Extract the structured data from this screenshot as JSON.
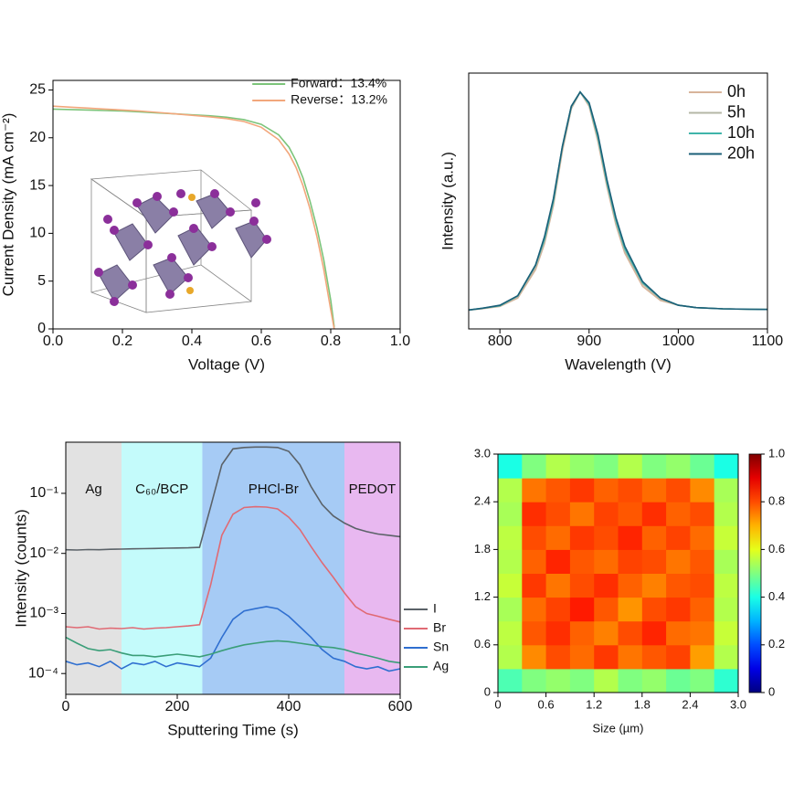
{
  "chart_data": [
    {
      "type": "line",
      "xlabel": "Voltage (V)",
      "ylabel": "Current Density (mA cm⁻²)",
      "xlim": [
        0,
        1
      ],
      "ylim": [
        0,
        26
      ],
      "xticks": [
        {
          "value": 0,
          "label": "0.0"
        },
        0.2,
        0.4,
        0.6,
        0.8,
        {
          "value": 1,
          "label": "1.0"
        }
      ],
      "yticks": [
        0,
        5,
        10,
        15,
        20,
        25
      ],
      "legend": "upper right",
      "x": [
        0,
        0.05,
        0.1,
        0.15,
        0.2,
        0.25,
        0.3,
        0.35,
        0.4,
        0.45,
        0.5,
        0.55,
        0.6,
        0.65,
        0.68,
        0.7,
        0.72,
        0.74,
        0.76,
        0.78,
        0.8,
        0.81
      ],
      "series": [
        {
          "name": "Forward：13.4%",
          "color": "#7cc47a",
          "values": [
            23.0,
            22.95,
            22.9,
            22.85,
            22.8,
            22.7,
            22.6,
            22.5,
            22.4,
            22.3,
            22.15,
            21.9,
            21.4,
            20.3,
            19.0,
            17.6,
            15.8,
            13.4,
            10.6,
            7.2,
            3.0,
            0.2
          ]
        },
        {
          "name": "Reverse：13.2%",
          "color": "#f2a77c",
          "values": [
            23.3,
            23.2,
            23.1,
            23.0,
            22.9,
            22.8,
            22.65,
            22.5,
            22.35,
            22.2,
            22.0,
            21.7,
            21.1,
            19.8,
            18.3,
            16.9,
            15.0,
            12.6,
            9.7,
            6.2,
            2.0,
            0
          ]
        }
      ]
    },
    {
      "type": "line",
      "xlabel": "Wavelength (V)",
      "ylabel": "Intensity (a.u.)",
      "xlim": [
        765,
        1100
      ],
      "ylim": [
        0,
        1.08
      ],
      "xticks": [
        800,
        900,
        1000,
        1100
      ],
      "legend": "upper right",
      "x": [
        765,
        780,
        800,
        820,
        840,
        850,
        860,
        870,
        880,
        890,
        900,
        910,
        920,
        930,
        940,
        960,
        980,
        1000,
        1020,
        1050,
        1080,
        1100
      ],
      "series": [
        {
          "name": "0h",
          "color": "#d8b49a",
          "values": [
            0.08,
            0.085,
            0.095,
            0.13,
            0.25,
            0.36,
            0.52,
            0.75,
            0.93,
            1.0,
            0.94,
            0.79,
            0.6,
            0.44,
            0.32,
            0.18,
            0.12,
            0.1,
            0.09,
            0.085,
            0.083,
            0.082
          ]
        },
        {
          "name": "5h",
          "color": "#b4b7a6",
          "values": [
            0.08,
            0.086,
            0.097,
            0.135,
            0.26,
            0.37,
            0.53,
            0.76,
            0.93,
            1.0,
            0.945,
            0.8,
            0.61,
            0.45,
            0.33,
            0.19,
            0.125,
            0.1,
            0.09,
            0.085,
            0.083,
            0.082
          ]
        },
        {
          "name": "10h",
          "color": "#3fb4aa",
          "values": [
            0.08,
            0.087,
            0.098,
            0.14,
            0.27,
            0.38,
            0.54,
            0.77,
            0.94,
            1.0,
            0.95,
            0.81,
            0.62,
            0.46,
            0.34,
            0.195,
            0.13,
            0.1,
            0.09,
            0.085,
            0.083,
            0.082
          ]
        },
        {
          "name": "20h",
          "color": "#1b5f78",
          "values": [
            0.08,
            0.087,
            0.1,
            0.14,
            0.27,
            0.39,
            0.55,
            0.77,
            0.94,
            1.0,
            0.955,
            0.82,
            0.63,
            0.47,
            0.35,
            0.2,
            0.13,
            0.1,
            0.09,
            0.085,
            0.083,
            0.082
          ]
        }
      ]
    },
    {
      "type": "line",
      "xlabel": "Sputtering Time (s)",
      "ylabel": "Intensity (counts)",
      "yscale": "log",
      "xlim": [
        0,
        600
      ],
      "ylim": [
        4.5e-05,
        0.71
      ],
      "xticks": [
        0,
        200,
        400,
        600
      ],
      "yticks": [
        {
          "value": 0.0001,
          "label": "10⁻⁴"
        },
        {
          "value": 0.001,
          "label": "10⁻³"
        },
        {
          "value": 0.01,
          "label": "10⁻²"
        },
        {
          "value": 0.1,
          "label": "10⁻¹"
        }
      ],
      "legend": "outside right",
      "regions": [
        {
          "label": "Ag",
          "start": 0,
          "end": 100,
          "color": "#e2e2e2"
        },
        {
          "label": "C₆₀/BCP",
          "start": 100,
          "end": 245,
          "color": "#c4fbfb"
        },
        {
          "label": "PHCl-Br",
          "start": 245,
          "end": 500,
          "color": "#a6cbf5"
        },
        {
          "label": "PEDOT",
          "start": 500,
          "end": 600,
          "color": "#e8b8f0"
        }
      ],
      "x": [
        0,
        20,
        40,
        60,
        80,
        100,
        120,
        140,
        160,
        180,
        200,
        220,
        240,
        260,
        280,
        300,
        320,
        340,
        360,
        380,
        400,
        420,
        440,
        460,
        480,
        500,
        520,
        540,
        560,
        580,
        600
      ],
      "series": [
        {
          "name": "I",
          "color": "#5b6268",
          "values": [
            0.0115,
            0.0114,
            0.0116,
            0.0115,
            0.0117,
            0.0118,
            0.0119,
            0.012,
            0.0121,
            0.0122,
            0.0123,
            0.0124,
            0.0126,
            0.06,
            0.3,
            0.55,
            0.58,
            0.59,
            0.59,
            0.58,
            0.5,
            0.3,
            0.13,
            0.065,
            0.042,
            0.032,
            0.026,
            0.023,
            0.021,
            0.02,
            0.019
          ]
        },
        {
          "name": "Br",
          "color": "#e06a74",
          "values": [
            0.0006,
            0.00058,
            0.0006,
            0.00055,
            0.00057,
            0.00056,
            0.00058,
            0.00055,
            0.00057,
            0.00058,
            0.0006,
            0.00062,
            0.00065,
            0.003,
            0.02,
            0.045,
            0.058,
            0.06,
            0.059,
            0.055,
            0.04,
            0.025,
            0.013,
            0.007,
            0.004,
            0.0022,
            0.0013,
            0.001,
            0.0009,
            0.0008,
            0.00072
          ]
        },
        {
          "name": "Sn",
          "color": "#2f6fd0",
          "values": [
            0.00016,
            0.00014,
            0.00015,
            0.00013,
            0.00016,
            0.00012,
            0.00015,
            0.00014,
            0.00016,
            0.00013,
            0.00015,
            0.00014,
            0.00013,
            0.00018,
            0.0004,
            0.0008,
            0.0011,
            0.0012,
            0.0013,
            0.0012,
            0.0009,
            0.0006,
            0.0004,
            0.00025,
            0.00018,
            0.00016,
            0.00013,
            0.00012,
            0.00013,
            0.00011,
            0.00012
          ]
        },
        {
          "name": "Ag",
          "color": "#3a9e78",
          "values": [
            0.0004,
            0.00032,
            0.00026,
            0.00024,
            0.00025,
            0.00022,
            0.0002,
            0.0002,
            0.00019,
            0.0002,
            0.00021,
            0.0002,
            0.00019,
            0.00021,
            0.00024,
            0.00027,
            0.0003,
            0.00032,
            0.00034,
            0.00035,
            0.00034,
            0.00032,
            0.0003,
            0.00028,
            0.00027,
            0.00025,
            0.00022,
            0.0002,
            0.00018,
            0.00016,
            0.00015
          ]
        }
      ]
    },
    {
      "type": "heatmap",
      "xlabel": "Size (µm)",
      "colorscale": "jet",
      "xlim": [
        0,
        3
      ],
      "ylim": [
        0,
        3
      ],
      "zlim": [
        0,
        1
      ],
      "xticks": [
        0,
        0.6,
        1.2,
        1.8,
        2.4,
        {
          "value": 3,
          "label": "3.0"
        }
      ],
      "yticks": [
        0,
        0.6,
        1.2,
        1.8,
        2.4,
        {
          "value": 3,
          "label": "3.0"
        }
      ],
      "cticks": [
        {
          "value": 0,
          "label": "0"
        },
        0.2,
        0.4,
        0.6,
        0.8,
        {
          "value": 1,
          "label": "1.0"
        }
      ],
      "z": [
        [
          0.45,
          0.5,
          0.52,
          0.5,
          0.55,
          0.5,
          0.52,
          0.48,
          0.5,
          0.42
        ],
        [
          0.55,
          0.74,
          0.8,
          0.77,
          0.82,
          0.76,
          0.79,
          0.81,
          0.72,
          0.55
        ],
        [
          0.56,
          0.79,
          0.83,
          0.78,
          0.75,
          0.8,
          0.84,
          0.77,
          0.76,
          0.57
        ],
        [
          0.54,
          0.77,
          0.81,
          0.85,
          0.79,
          0.73,
          0.8,
          0.82,
          0.78,
          0.55
        ],
        [
          0.57,
          0.82,
          0.76,
          0.8,
          0.83,
          0.78,
          0.75,
          0.79,
          0.8,
          0.56
        ],
        [
          0.55,
          0.78,
          0.84,
          0.79,
          0.77,
          0.81,
          0.8,
          0.76,
          0.79,
          0.54
        ],
        [
          0.56,
          0.8,
          0.77,
          0.82,
          0.8,
          0.84,
          0.78,
          0.81,
          0.77,
          0.57
        ],
        [
          0.54,
          0.83,
          0.8,
          0.76,
          0.81,
          0.79,
          0.83,
          0.78,
          0.8,
          0.55
        ],
        [
          0.55,
          0.76,
          0.79,
          0.82,
          0.78,
          0.8,
          0.77,
          0.8,
          0.74,
          0.54
        ],
        [
          0.4,
          0.5,
          0.55,
          0.52,
          0.5,
          0.55,
          0.5,
          0.52,
          0.48,
          0.4
        ]
      ]
    }
  ]
}
